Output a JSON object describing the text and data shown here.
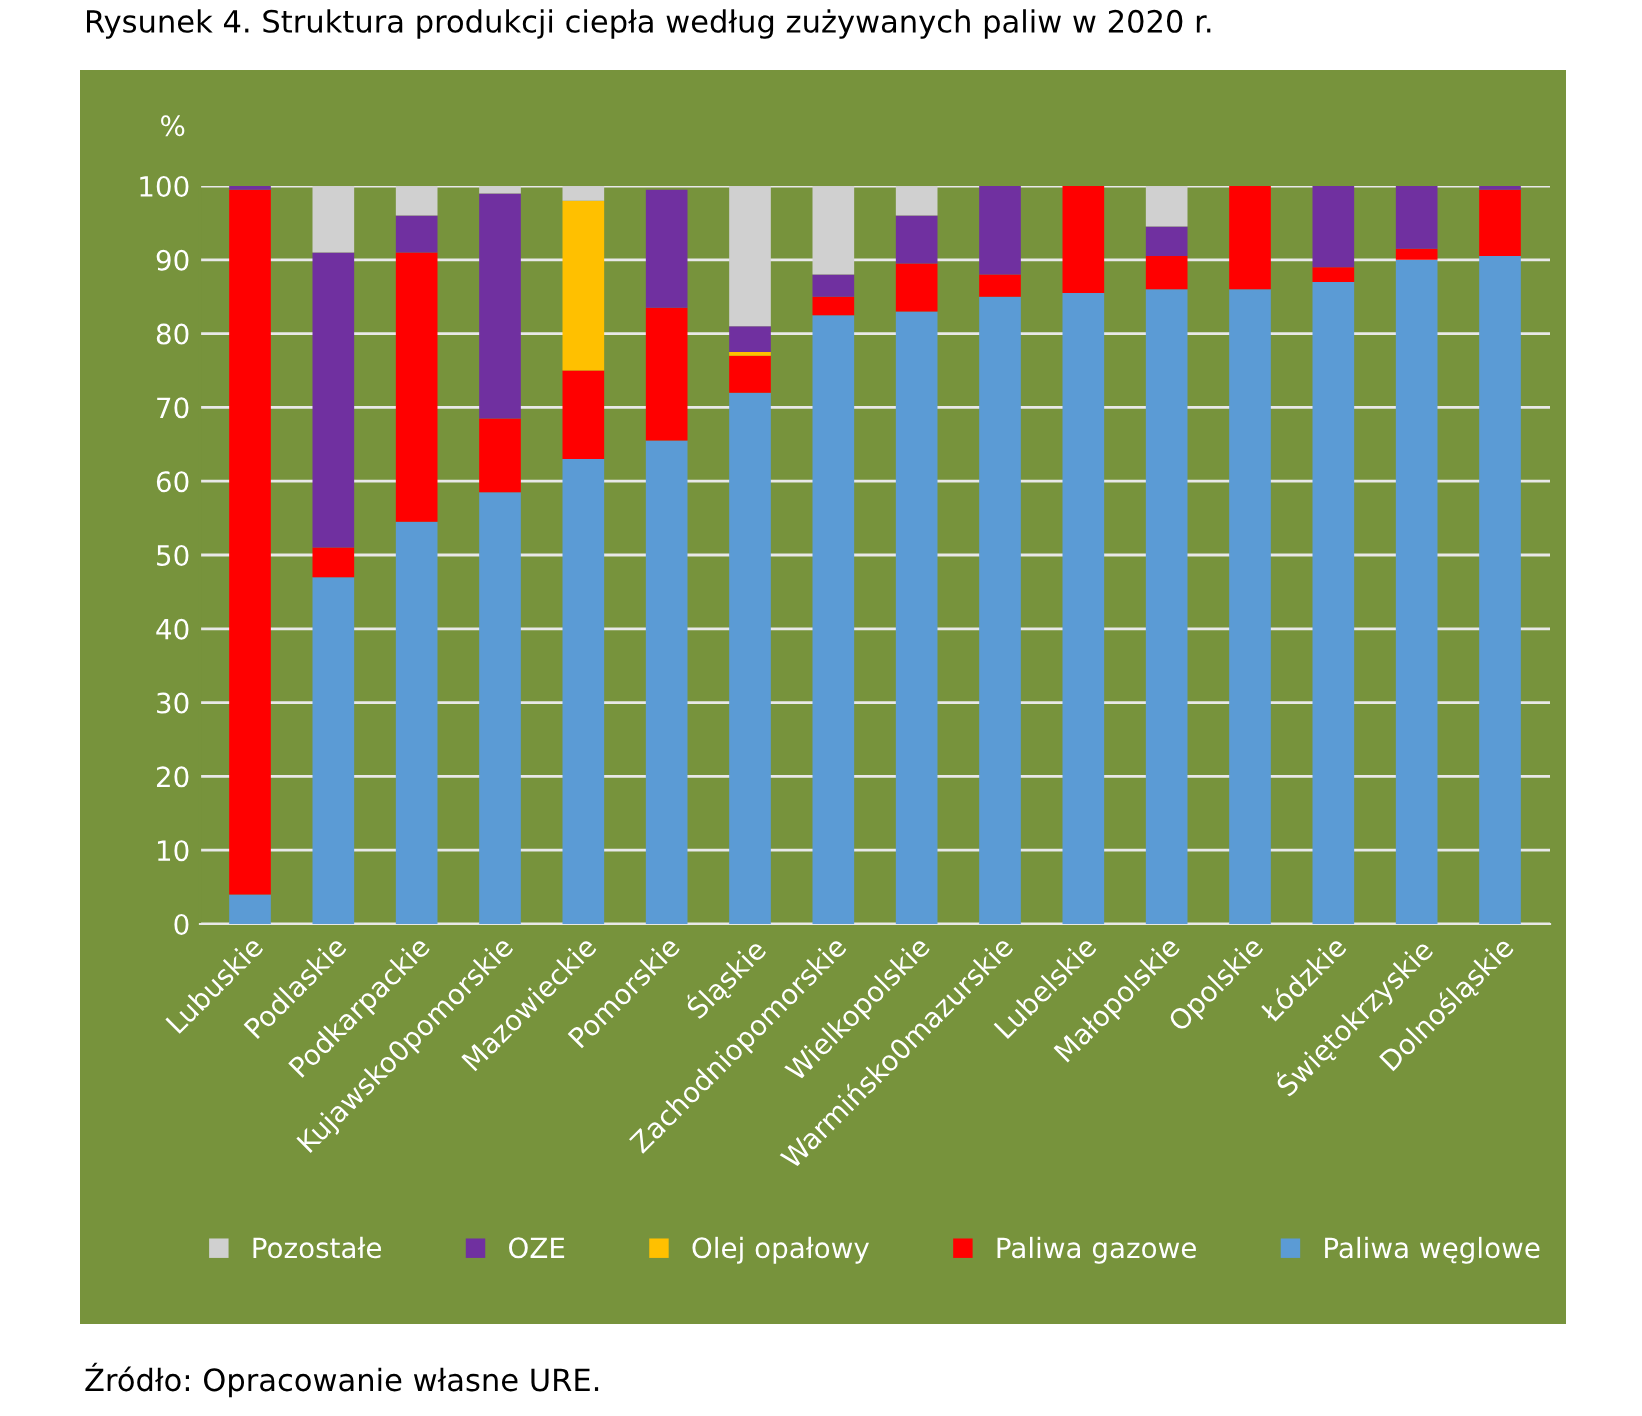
{
  "chart_data": {
    "type": "bar",
    "stacked": true,
    "title": "Rysunek 4. Struktura produkcji ciepła według zużywanych paliw w 2020 r.",
    "ylabel": "%",
    "categories": [
      "Lubuskie",
      "Podlaskie",
      "Podkarpackie",
      "Kujawsko0pomorskie",
      "Mazowieckie",
      "Pomorskie",
      "Śląskie",
      "Zachodniopomorskie",
      "Wielkopolskie",
      "Warmińsko0mazurskie",
      "Lubelskie",
      "Małopolskie",
      "Opolskie",
      "Łódzkie",
      "Świętokrzyskie",
      "Dolnośląskie"
    ],
    "series": [
      {
        "name": "Paliwa węglowe",
        "color": "#5b9bd5",
        "values": [
          4,
          47,
          54.5,
          58.5,
          63,
          65.5,
          72,
          82.5,
          83,
          85,
          85.5,
          86,
          86,
          87,
          90,
          90.5
        ]
      },
      {
        "name": "Paliwa gazowe",
        "color": "#ff0000",
        "values": [
          95.5,
          4,
          36.5,
          10,
          12,
          18,
          5,
          2.5,
          6.5,
          3,
          14.5,
          4.5,
          14,
          2,
          1.5,
          9
        ]
      },
      {
        "name": "Olej opałowy",
        "color": "#ffc000",
        "values": [
          0,
          0,
          0,
          0,
          23,
          0,
          0.5,
          0,
          0,
          0,
          0,
          0,
          0,
          0,
          0,
          0
        ]
      },
      {
        "name": "OZE",
        "color": "#7030a0",
        "values": [
          0.5,
          40,
          5,
          30.5,
          0,
          16,
          3.5,
          3,
          6.5,
          12,
          0,
          4,
          0,
          11,
          8.5,
          0.5
        ]
      },
      {
        "name": "Pozostałe",
        "color": "#d0d0d0",
        "values": [
          0,
          9,
          4,
          1,
          2,
          null,
          19,
          12,
          4,
          0,
          0,
          5.5,
          0,
          0,
          0,
          0
        ]
      }
    ],
    "ylim": [
      0,
      100
    ],
    "yticks": [
      0,
      10,
      20,
      30,
      40,
      50,
      60,
      70,
      80,
      90,
      100
    ],
    "grid": "y",
    "legend": "bottom",
    "annotations": [
      "Źródło: Opracowanie własne URE."
    ]
  }
}
